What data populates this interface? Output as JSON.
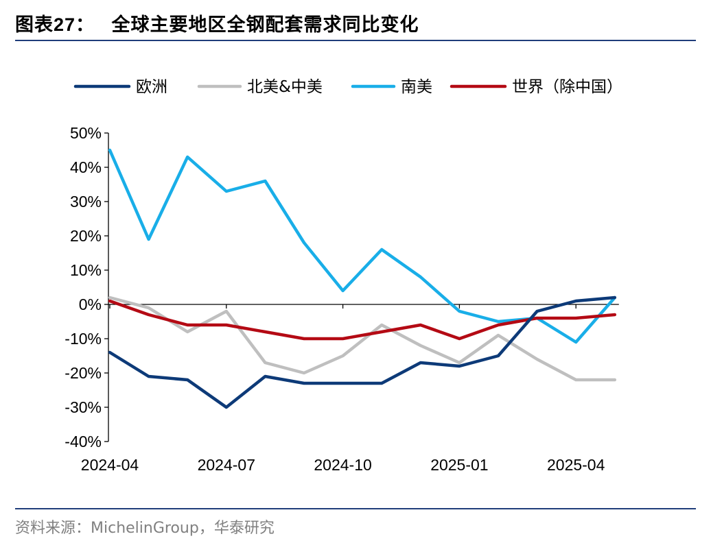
{
  "header": {
    "label": "图表",
    "number": "27：",
    "title": "全球主要地区全钢配套需求同比变化"
  },
  "source": "资料来源：MichelinGroup，华泰研究",
  "colors": {
    "europe": "#0d3a78",
    "north_central_america": "#bfbfbf",
    "south_america": "#19aee8",
    "world_ex_china": "#b40a14",
    "axis": "#000000",
    "rule": "#1f3d7a"
  },
  "chart_data": {
    "type": "line",
    "x": [
      "2024-04",
      "2024-05",
      "2024-06",
      "2024-07",
      "2024-08",
      "2024-09",
      "2024-10",
      "2024-11",
      "2024-12",
      "2025-01",
      "2025-02",
      "2025-03",
      "2025-04",
      "2025-05"
    ],
    "x_tick_labels": [
      "2024-04",
      "2024-07",
      "2024-10",
      "2025-01",
      "2025-04"
    ],
    "y_tick_labels": [
      "50%",
      "40%",
      "30%",
      "20%",
      "10%",
      "0%",
      "-10%",
      "-20%",
      "-30%",
      "-40%"
    ],
    "ylim": [
      -40,
      50
    ],
    "legend_position": "top",
    "grid": false,
    "series": [
      {
        "name": "欧洲",
        "color_key": "europe",
        "values": [
          -14,
          -21,
          -22,
          -30,
          -21,
          -23,
          -23,
          -23,
          -17,
          -18,
          -15,
          -2,
          1,
          2
        ]
      },
      {
        "name": "北美&中美",
        "color_key": "north_central_america",
        "values": [
          2,
          -1,
          -8,
          -2,
          -17,
          -20,
          -15,
          -6,
          -12,
          -17,
          -9,
          -16,
          -22,
          -22
        ]
      },
      {
        "name": "南美",
        "color_key": "south_america",
        "values": [
          45,
          19,
          43,
          33,
          36,
          18,
          4,
          16,
          8,
          -2,
          -5,
          -4,
          -11,
          2
        ]
      },
      {
        "name": "世界（除中国）",
        "color_key": "world_ex_china",
        "values": [
          1,
          -3,
          -6,
          -6,
          -8,
          -10,
          -10,
          -8,
          -6,
          -10,
          -6,
          -4,
          -4,
          -3
        ]
      }
    ]
  }
}
